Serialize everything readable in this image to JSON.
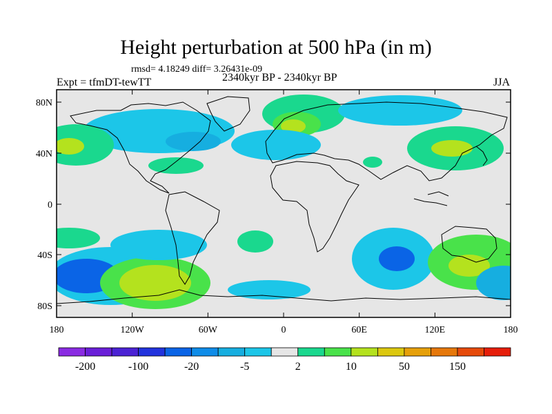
{
  "title": "Height perturbation at 500 hPa (in m)",
  "stats": "rmsd= 4.18249  diff= 3.26431e-09",
  "experiment": "Expt = tfmDT-tewTT",
  "period": "2340kyr BP - 2340kyr BP",
  "season": "JJA",
  "lat_ticks": [
    "80N",
    "40N",
    "0",
    "40S",
    "80S"
  ],
  "lon_ticks": [
    "180",
    "120W",
    "60W",
    "0",
    "60E",
    "120E",
    "180"
  ],
  "legend": {
    "colors": [
      "#8a2be2",
      "#6a1fd8",
      "#4b22d4",
      "#2233dd",
      "#0a64e6",
      "#0f8ce8",
      "#16aee0",
      "#1cc6e8",
      "#e6e6e6",
      "#1ad88e",
      "#49e24a",
      "#b4e21e",
      "#dcc80f",
      "#e6a00a",
      "#e6780a",
      "#e64a0a",
      "#e61e0a"
    ],
    "labels": [
      "-200",
      "-100",
      "-20",
      "-5",
      "2",
      "10",
      "50",
      "150"
    ]
  }
}
